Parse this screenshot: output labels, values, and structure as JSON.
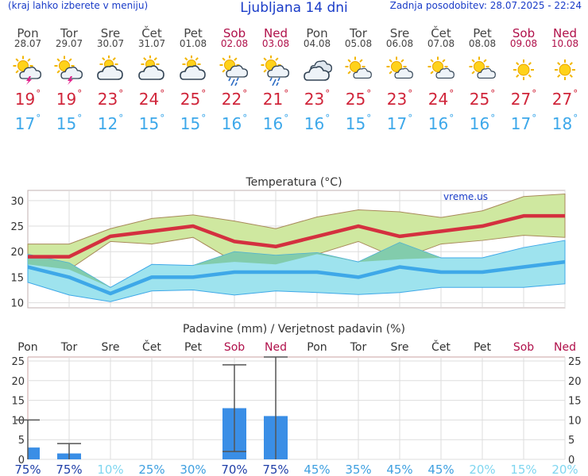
{
  "header": {
    "menu_hint": "(kraj lahko izberete v meniju)",
    "title": "Ljubljana 14 dni",
    "updated": "Zadnja posodobitev: 28.07.2025 - 22:24"
  },
  "days": [
    {
      "name": "Pon",
      "date": "28.07",
      "weekend": false,
      "icon": "sun-cloud-thunder-icon",
      "tmax": "19",
      "tmin": "17"
    },
    {
      "name": "Tor",
      "date": "29.07",
      "weekend": false,
      "icon": "sun-cloud-thunder-icon",
      "tmax": "19",
      "tmin": "15"
    },
    {
      "name": "Sre",
      "date": "30.07",
      "weekend": false,
      "icon": "partly-cloudy-icon",
      "tmax": "23",
      "tmin": "12"
    },
    {
      "name": "Čet",
      "date": "31.07",
      "weekend": false,
      "icon": "partly-cloudy-icon",
      "tmax": "24",
      "tmin": "15"
    },
    {
      "name": "Pet",
      "date": "01.08",
      "weekend": false,
      "icon": "partly-cloudy-icon",
      "tmax": "25",
      "tmin": "15"
    },
    {
      "name": "Sob",
      "date": "02.08",
      "weekend": true,
      "icon": "sun-cloud-rain-icon",
      "tmax": "22",
      "tmin": "16"
    },
    {
      "name": "Ned",
      "date": "03.08",
      "weekend": true,
      "icon": "sun-cloud-rain-icon",
      "tmax": "21",
      "tmin": "16"
    },
    {
      "name": "Pon",
      "date": "04.08",
      "weekend": false,
      "icon": "cloudy-icon",
      "tmax": "23",
      "tmin": "16"
    },
    {
      "name": "Tor",
      "date": "05.08",
      "weekend": false,
      "icon": "mostly-sunny-icon",
      "tmax": "25",
      "tmin": "15"
    },
    {
      "name": "Sre",
      "date": "06.08",
      "weekend": false,
      "icon": "mostly-sunny-icon",
      "tmax": "23",
      "tmin": "17"
    },
    {
      "name": "Čet",
      "date": "07.08",
      "weekend": false,
      "icon": "mostly-sunny-icon",
      "tmax": "24",
      "tmin": "16"
    },
    {
      "name": "Pet",
      "date": "08.08",
      "weekend": false,
      "icon": "mostly-sunny-icon",
      "tmax": "25",
      "tmin": "16"
    },
    {
      "name": "Sob",
      "date": "09.08",
      "weekend": true,
      "icon": "sun-icon",
      "tmax": "27",
      "tmin": "17"
    },
    {
      "name": "Ned",
      "date": "10.08",
      "weekend": true,
      "icon": "sun-icon",
      "tmax": "27",
      "tmin": "18"
    }
  ],
  "chart_data": [
    {
      "type": "line",
      "title": "Temperatura (°C)",
      "watermark": "vreme.us",
      "categories": [
        "Pon",
        "Tor",
        "Sre",
        "Čet",
        "Pet",
        "Sob",
        "Ned",
        "Pon",
        "Tor",
        "Sre",
        "Čet",
        "Pet",
        "Sob",
        "Ned"
      ],
      "ylim": [
        9,
        32
      ],
      "yticks": [
        10,
        15,
        20,
        25,
        30
      ],
      "series": [
        {
          "name": "max",
          "values": [
            19,
            19,
            23,
            24,
            25,
            22,
            21,
            23,
            25,
            23,
            24,
            25,
            27,
            27
          ]
        },
        {
          "name": "max_upper",
          "values": [
            21.5,
            21.5,
            24.5,
            26.5,
            27.2,
            26,
            24.5,
            26.8,
            28.2,
            27.8,
            26.7,
            28,
            30.8,
            31.3
          ]
        },
        {
          "name": "max_lower",
          "values": [
            17.5,
            16.5,
            22,
            21.5,
            22.8,
            18,
            17.5,
            19.5,
            22,
            18.5,
            21.5,
            22.2,
            23.2,
            22.8
          ]
        },
        {
          "name": "min",
          "values": [
            17,
            15,
            11.8,
            15,
            15,
            16,
            16,
            16,
            15,
            17,
            16,
            16,
            17,
            18
          ]
        },
        {
          "name": "min_upper",
          "values": [
            19.5,
            17.8,
            13,
            17.5,
            17.3,
            20,
            19.3,
            19.8,
            18,
            21.8,
            18.8,
            18.8,
            20.8,
            22.2
          ]
        },
        {
          "name": "min_lower",
          "values": [
            14,
            11.5,
            10.2,
            12.3,
            12.5,
            11.5,
            12.3,
            12,
            11.6,
            12,
            13,
            13,
            13,
            13.7
          ]
        }
      ]
    },
    {
      "type": "bar",
      "title": "Padavine (mm) / Verjetnost padavin (%)",
      "categories": [
        "Pon",
        "Tor",
        "Sre",
        "Čet",
        "Pet",
        "Sob",
        "Ned",
        "Pon",
        "Tor",
        "Sre",
        "Čet",
        "Pet",
        "Sob",
        "Ned"
      ],
      "ylim": [
        0,
        26
      ],
      "yticks": [
        0,
        5,
        10,
        15,
        20,
        25
      ],
      "series": [
        {
          "name": "precipitation_mm",
          "values": [
            3,
            1.5,
            0,
            0,
            0,
            13,
            11,
            0,
            0,
            0,
            0,
            0,
            0,
            0
          ]
        },
        {
          "name": "precip_low",
          "values": [
            0,
            0,
            0,
            0,
            0,
            2,
            0,
            0,
            0,
            0,
            0,
            0,
            0,
            0
          ]
        },
        {
          "name": "precip_high",
          "values": [
            10,
            4,
            0,
            0,
            0,
            24,
            26,
            0,
            0,
            0,
            0,
            0,
            0,
            0
          ]
        }
      ],
      "probability": [
        "75%",
        "75%",
        "10%",
        "25%",
        "30%",
        "70%",
        "75%",
        "45%",
        "35%",
        "45%",
        "45%",
        "20%",
        "15%",
        "20%"
      ],
      "probability_colors": [
        "#1f3fa8",
        "#1f3fa8",
        "#7fd6f0",
        "#3fa0e0",
        "#3fa0e0",
        "#1f3fa8",
        "#1f3fa8",
        "#3fa0e0",
        "#3fa0e0",
        "#3fa0e0",
        "#3fa0e0",
        "#7fd6f0",
        "#7fd6f0",
        "#7fd6f0"
      ]
    }
  ],
  "colors": {
    "max_line": "#d4303f",
    "max_band": "#cfe8a0",
    "min_line": "#3ea8e8",
    "min_band": "#9ee3ee",
    "overlap": "#7cc8a0",
    "bar": "#3a8ee6",
    "weekend": "#b0104a",
    "header_text": "#1a3cc8"
  }
}
